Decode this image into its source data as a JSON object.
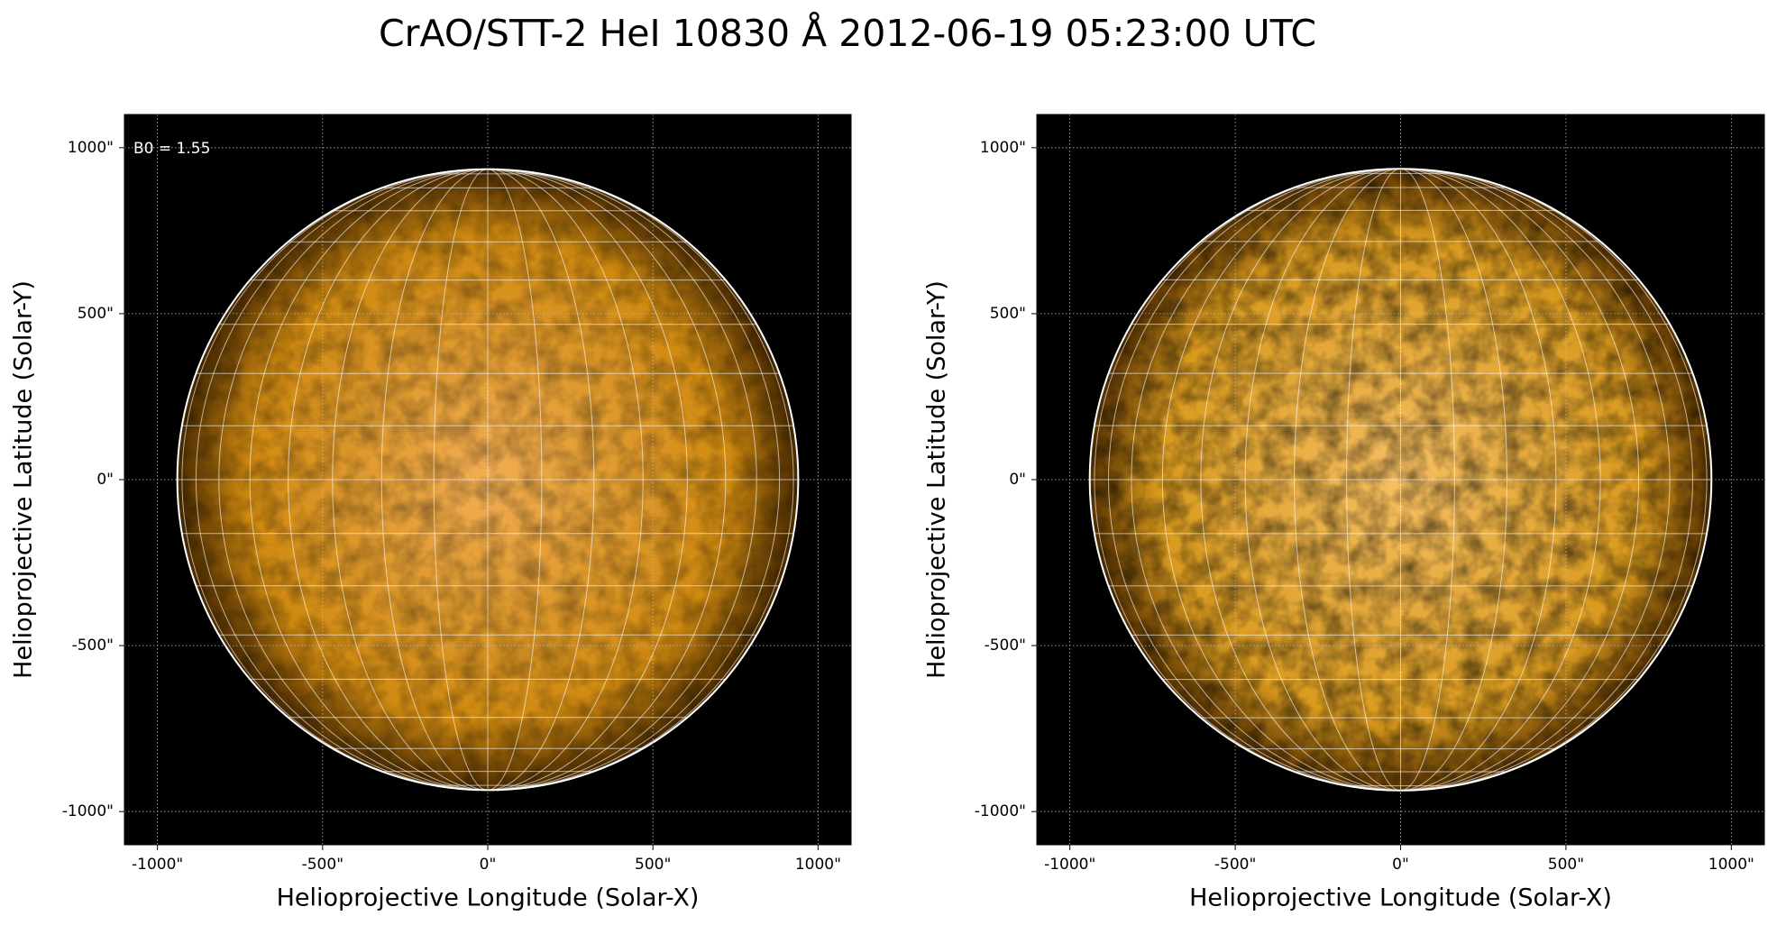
{
  "title": "CrAO/STT-2 HeI 10830 Å 2012-06-19 05:23:00 UTC",
  "chart_data": [
    {
      "type": "image",
      "xlabel": "Helioprojective Longitude (Solar-X)",
      "ylabel": "Helioprojective Latitude (Solar-Y)",
      "annotation": "B0 = 1.55",
      "xlim": [
        -1100,
        1100
      ],
      "ylim": [
        -1100,
        1100
      ],
      "xticks": [
        {
          "value": -1000,
          "label": "-1000\""
        },
        {
          "value": -500,
          "label": "-500\""
        },
        {
          "value": 0,
          "label": "0\""
        },
        {
          "value": 500,
          "label": "500\""
        },
        {
          "value": 1000,
          "label": "1000\""
        }
      ],
      "yticks": [
        {
          "value": -1000,
          "label": "-1000\""
        },
        {
          "value": -500,
          "label": "-500\""
        },
        {
          "value": 0,
          "label": "0\""
        },
        {
          "value": 500,
          "label": "500\""
        },
        {
          "value": 1000,
          "label": "1000\""
        }
      ],
      "grid": true,
      "disk_radius": 940,
      "heliographic_grid_deg": 10,
      "colormap": [
        "#f2ad52",
        "#d08a10",
        "#4a2a00"
      ]
    },
    {
      "type": "image",
      "xlabel": "Helioprojective Longitude (Solar-X)",
      "ylabel": "Helioprojective Latitude (Solar-Y)",
      "xlim": [
        -1100,
        1100
      ],
      "ylim": [
        -1100,
        1100
      ],
      "xticks": [
        {
          "value": -1000,
          "label": "-1000\""
        },
        {
          "value": -500,
          "label": "-500\""
        },
        {
          "value": 0,
          "label": "0\""
        },
        {
          "value": 500,
          "label": "500\""
        },
        {
          "value": 1000,
          "label": "1000\""
        }
      ],
      "yticks": [
        {
          "value": -1000,
          "label": "-1000\""
        },
        {
          "value": -500,
          "label": "-500\""
        },
        {
          "value": 0,
          "label": "0\""
        },
        {
          "value": 500,
          "label": "500\""
        },
        {
          "value": 1000,
          "label": "1000\""
        }
      ],
      "grid": true,
      "disk_radius": 940,
      "heliographic_grid_deg": 10,
      "colormap": [
        "#f6bf62",
        "#d99a1e",
        "#5a3300"
      ]
    }
  ]
}
